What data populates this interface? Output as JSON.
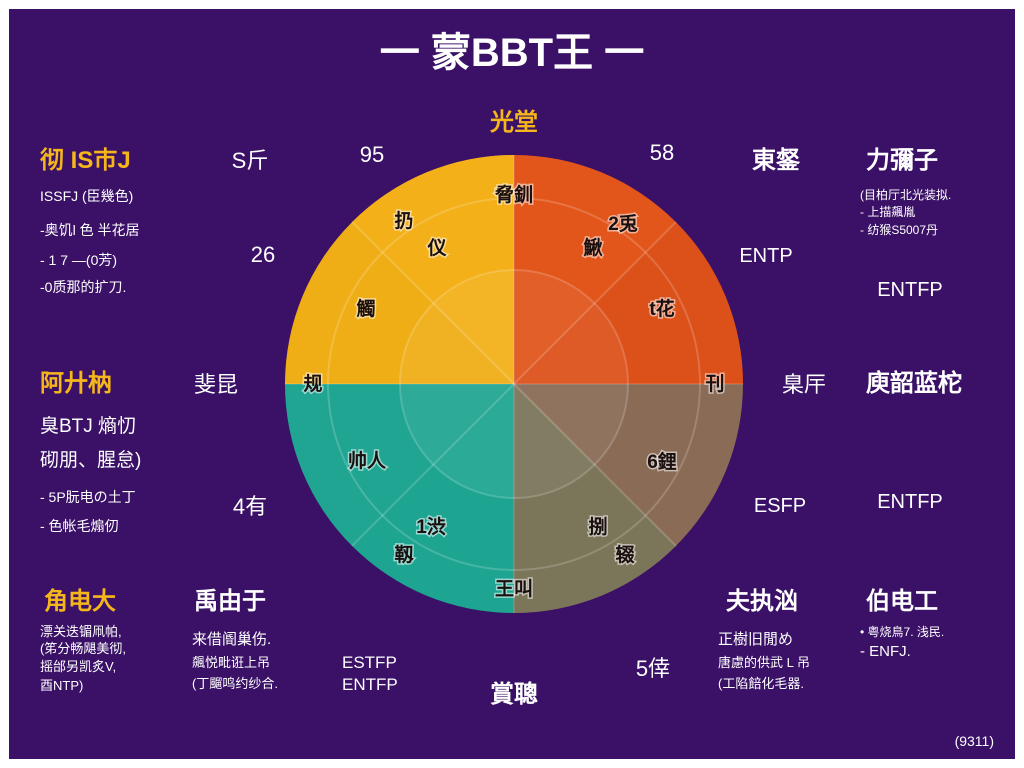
{
  "colors": {
    "frame": "#ffffff",
    "panel": "#3a1167",
    "text": "#ffffff",
    "accent": "#f5b61b",
    "slice_top_left": "#f0ae16",
    "slice_top_right": "#e2561c",
    "slice_bottom_right": "#8a6b55",
    "slice_bottom_left": "#1ea592"
  },
  "title": "一 蒙BBT王 一",
  "wheel": {
    "top_label": "光堂",
    "bottom_label": "賞聰",
    "labels": {
      "top": "脅釧",
      "top_right_outer": "2兎",
      "top_right_inner": "鰍",
      "top_left_outer": "扔",
      "top_left_mid": "仪",
      "left_upper": "觸",
      "left": "规",
      "right_upper": "t花",
      "right": "刊",
      "bottom_left_outer": "帅人",
      "bottom_left_inner": "1渋",
      "bottom_left_low": "靱",
      "bottom_right_outer": "6鋰",
      "bottom_right_inner": "捌",
      "bottom_right_low": "辍",
      "bottom": "王叫"
    }
  },
  "numbers": {
    "top_left": "S斤",
    "top_center_left": "95",
    "top_center_right": "58",
    "left_upper": "26",
    "left_mid": "斐昆",
    "left_lower": "4有",
    "right_mid": "臬厈",
    "bottom_right": "5倖"
  },
  "codes": {
    "right_1": "ENTP",
    "right_2": "ENTFP",
    "right_3": "ESFP",
    "right_4": "ENTFP",
    "bottom_1": "ESTFP",
    "bottom_2": "ENTFP"
  },
  "panels": {
    "top_left": {
      "heading": "彻 IS巿J",
      "lines": [
        "ISSFJ (臣幾色)",
        "-奥饥l 色 半花居",
        "- 1 7 —(0芳)",
        "-0质那的扩刀."
      ]
    },
    "top_right_a": {
      "heading": "東錖"
    },
    "top_right_b": {
      "heading": "力彌子",
      "lines": [
        "(目柏厅北光装拟.",
        "- 上描飆胤",
        "- 纺猴S5007丹"
      ]
    },
    "mid_left": {
      "heading": "阿廾枘",
      "lines": [
        "臭BTJ 熵忉",
        "砌朋、腥怠)",
        "- 5P朊电の土丁",
        "- 色帐毛煽仞"
      ]
    },
    "mid_right": {
      "heading": "庾韶蓝柁"
    },
    "bottom_left": {
      "heading": "角电大",
      "lines": [
        "漂关迭镅凧帕,",
        "(笫分畅飓美彻,",
        "摇邰另凯炙V,",
        "酉NTP)"
      ]
    },
    "bottom_left2": {
      "heading": "禹由于",
      "lines": [
        "来借阍巢伤.",
        "飆悦毗诳上吊",
        "(丁飀鸣约纱合."
      ]
    },
    "bottom_right": {
      "heading": "夫执汹",
      "lines": [
        "正樹旧閒め",
        "唐慮的供武 L 吊",
        "(工陷餢化毛器."
      ]
    },
    "bottom_right2": {
      "heading": "伯电工",
      "lines": [
        "• 粤烧鳥7. 浅民.",
        "- ENFJ."
      ]
    }
  },
  "footer": "(9311)"
}
